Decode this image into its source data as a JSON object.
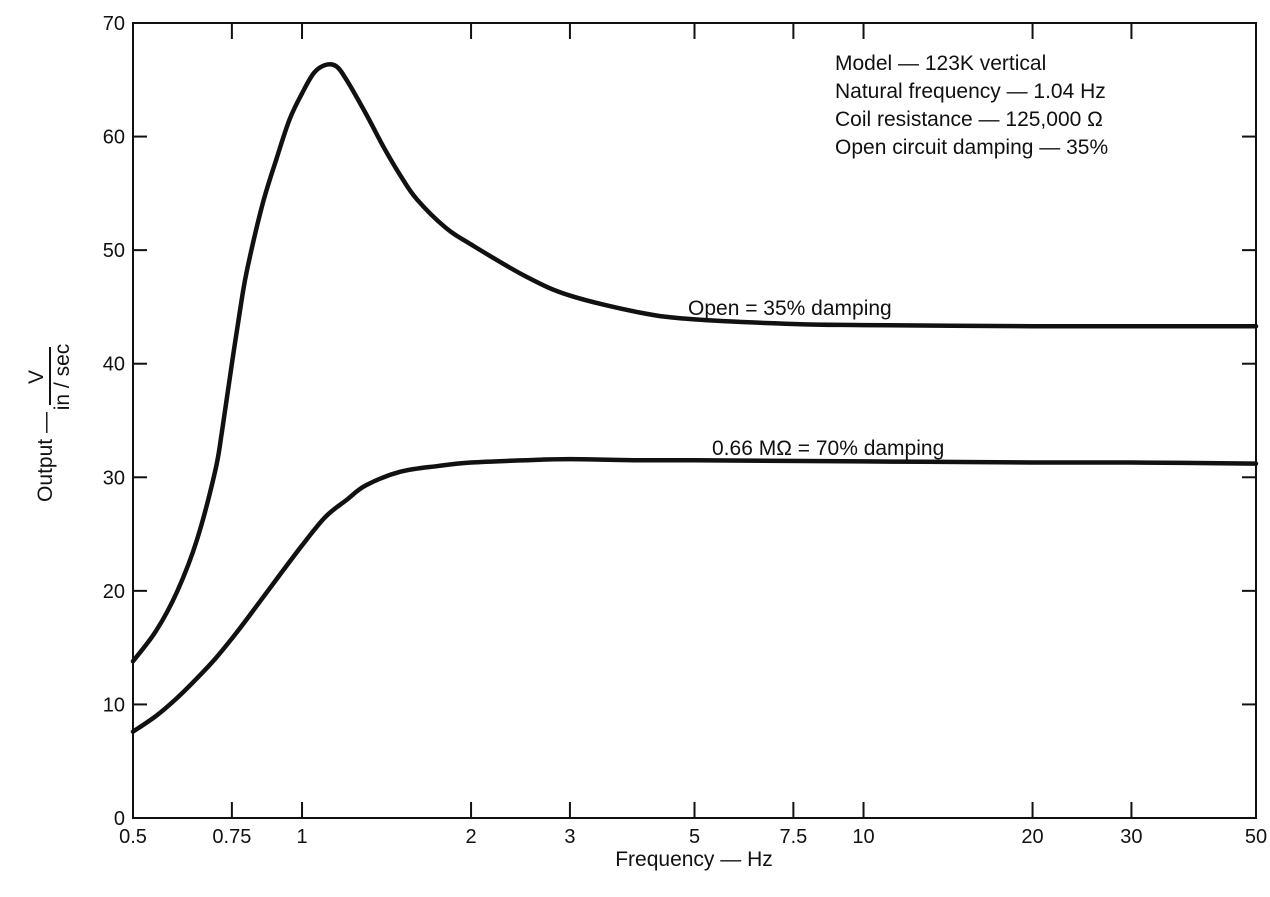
{
  "chart_data": {
    "type": "line",
    "title": "",
    "xlabel": "Frequency — Hz",
    "ylabel_text": "Output —",
    "ylabel_fraction": {
      "numerator": "V",
      "denominator": "in / sec"
    },
    "x_scale": "log",
    "xlim": [
      0.5,
      50
    ],
    "ylim": [
      0,
      70
    ],
    "grid": false,
    "legend": "none",
    "x_ticks": [
      {
        "value": 0.5,
        "label": "0.5"
      },
      {
        "value": 0.75,
        "label": "0.75"
      },
      {
        "value": 1,
        "label": "1"
      },
      {
        "value": 2,
        "label": "2"
      },
      {
        "value": 3,
        "label": "3"
      },
      {
        "value": 5,
        "label": "5"
      },
      {
        "value": 7.5,
        "label": "7.5"
      },
      {
        "value": 10,
        "label": "10"
      },
      {
        "value": 20,
        "label": "20"
      },
      {
        "value": 30,
        "label": "30"
      },
      {
        "value": 50,
        "label": "50"
      }
    ],
    "y_ticks": [
      {
        "value": 0,
        "label": "0"
      },
      {
        "value": 10,
        "label": "10"
      },
      {
        "value": 20,
        "label": "20"
      },
      {
        "value": 30,
        "label": "30"
      },
      {
        "value": 40,
        "label": "40"
      },
      {
        "value": 50,
        "label": "50"
      },
      {
        "value": 60,
        "label": "60"
      },
      {
        "value": 70,
        "label": "70"
      }
    ],
    "annotations": [
      "Model — 123K vertical",
      "Natural frequency — 1.04 Hz",
      "Coil resistance — 125,000 Ω",
      "Open circuit damping — 35%"
    ],
    "series": [
      {
        "name": "Open = 35% damping",
        "points": [
          [
            0.5,
            13.8
          ],
          [
            0.55,
            16.5
          ],
          [
            0.6,
            20.0
          ],
          [
            0.65,
            24.5
          ],
          [
            0.7,
            30.5
          ],
          [
            0.72,
            34.0
          ],
          [
            0.75,
            40.0
          ],
          [
            0.78,
            45.5
          ],
          [
            0.8,
            48.5
          ],
          [
            0.85,
            54.0
          ],
          [
            0.9,
            58.0
          ],
          [
            0.95,
            61.5
          ],
          [
            1.0,
            63.8
          ],
          [
            1.05,
            65.6
          ],
          [
            1.1,
            66.3
          ],
          [
            1.15,
            66.2
          ],
          [
            1.2,
            65.0
          ],
          [
            1.3,
            62.0
          ],
          [
            1.4,
            59.0
          ],
          [
            1.5,
            56.5
          ],
          [
            1.6,
            54.5
          ],
          [
            1.8,
            52.0
          ],
          [
            2.0,
            50.5
          ],
          [
            2.5,
            47.7
          ],
          [
            3.0,
            46.0
          ],
          [
            4.0,
            44.5
          ],
          [
            5.0,
            43.9
          ],
          [
            7.5,
            43.5
          ],
          [
            10,
            43.4
          ],
          [
            20,
            43.3
          ],
          [
            30,
            43.3
          ],
          [
            50,
            43.3
          ]
        ]
      },
      {
        "name": "0.66 MΩ = 70% damping",
        "points": [
          [
            0.5,
            7.6
          ],
          [
            0.55,
            9.0
          ],
          [
            0.6,
            10.6
          ],
          [
            0.65,
            12.3
          ],
          [
            0.7,
            14.0
          ],
          [
            0.75,
            15.8
          ],
          [
            0.8,
            17.6
          ],
          [
            0.9,
            21.0
          ],
          [
            1.0,
            24.0
          ],
          [
            1.1,
            26.5
          ],
          [
            1.2,
            28.0
          ],
          [
            1.3,
            29.3
          ],
          [
            1.5,
            30.5
          ],
          [
            1.75,
            31.0
          ],
          [
            2.0,
            31.3
          ],
          [
            2.5,
            31.5
          ],
          [
            3.0,
            31.6
          ],
          [
            4.0,
            31.5
          ],
          [
            5.0,
            31.5
          ],
          [
            10,
            31.4
          ],
          [
            20,
            31.3
          ],
          [
            30,
            31.3
          ],
          [
            50,
            31.2
          ]
        ]
      }
    ]
  }
}
